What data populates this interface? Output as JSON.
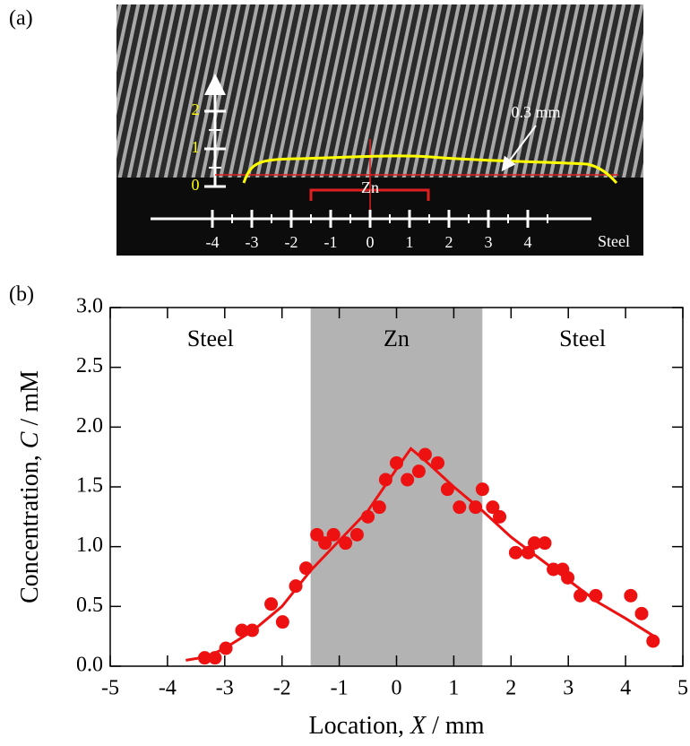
{
  "panel_a": {
    "label": "(a)",
    "vertical_scale": [
      0,
      1,
      2
    ],
    "horizontal_scale": [
      -4,
      -3,
      -2,
      -1,
      0,
      1,
      2,
      3,
      4
    ],
    "annotation": "0.3 mm",
    "zn_label": "Zn",
    "steel_label": "Steel"
  },
  "chart_data": {
    "type": "scatter",
    "panel_label": "(b)",
    "xlabel": [
      "Location, ",
      "X",
      " / mm"
    ],
    "ylabel": [
      "Concentration, ",
      "C",
      " / mM"
    ],
    "xlim": [
      -5,
      5
    ],
    "ylim": [
      0,
      3
    ],
    "xticks": [
      -5,
      -4,
      -3,
      -2,
      -1,
      0,
      1,
      2,
      3,
      4,
      5
    ],
    "yticks": [
      {
        "value": 0,
        "label": "0.0"
      },
      0.5,
      {
        "value": 1,
        "label": "1.0"
      },
      1.5,
      {
        "value": 2,
        "label": "2.0"
      },
      2.5,
      {
        "value": 3,
        "label": "3.0"
      }
    ],
    "regions": [
      {
        "label": "Steel",
        "xlim": [
          -5,
          -1.5
        ]
      },
      {
        "label": "Zn",
        "xlim": [
          -1.5,
          1.5
        ],
        "shaded": true,
        "color": "#b3b3b3"
      },
      {
        "label": "Steel",
        "xlim": [
          1.5,
          5
        ]
      }
    ],
    "points": {
      "color": "#ee1111",
      "x": [
        -3.35,
        -3.17,
        -2.98,
        -2.7,
        -2.52,
        -2.19,
        -1.99,
        -1.76,
        -1.58,
        -1.39,
        -1.25,
        -1.1,
        -0.89,
        -0.69,
        -0.5,
        -0.3,
        -0.19,
        0,
        0.19,
        0.39,
        0.5,
        0.72,
        0.89,
        1.1,
        1.38,
        1.5,
        1.68,
        1.8,
        2.08,
        2.3,
        2.41,
        2.59,
        2.74,
        2.9,
        2.99,
        3.21,
        3.48,
        4.09,
        4.28,
        4.48
      ],
      "values": [
        0.07,
        0.07,
        0.15,
        0.3,
        0.3,
        0.52,
        0.37,
        0.67,
        0.82,
        1.1,
        1.03,
        1.1,
        1.03,
        1.1,
        1.25,
        1.33,
        1.56,
        1.7,
        1.56,
        1.63,
        1.77,
        1.7,
        1.48,
        1.33,
        1.33,
        1.48,
        1.33,
        1.25,
        0.95,
        0.95,
        1.03,
        1.03,
        0.81,
        0.81,
        0.74,
        0.59,
        0.59,
        0.59,
        0.44,
        0.21
      ]
    },
    "fit": {
      "color": "#ee1111",
      "x": [
        -3.68,
        -3.3,
        -3,
        -2.5,
        -2,
        -1.5,
        -1,
        -0.5,
        0,
        0.25,
        0.5,
        1,
        1.5,
        2,
        2.5,
        3,
        3.5,
        4,
        4.5
      ],
      "values": [
        0.05,
        0.08,
        0.15,
        0.3,
        0.5,
        0.8,
        1.05,
        1.3,
        1.65,
        1.82,
        1.72,
        1.5,
        1.3,
        1.08,
        0.9,
        0.72,
        0.54,
        0.4,
        0.25
      ]
    }
  }
}
